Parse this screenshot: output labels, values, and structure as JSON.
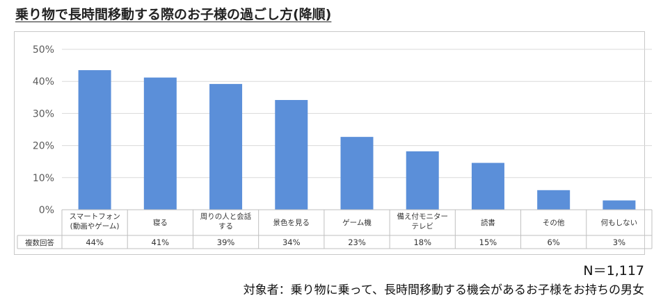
{
  "title": "乗り物で長時間移動する際のお子様の過ごし方(降順)",
  "sample_note": "N＝1,117",
  "subject_note": "対象者：乗り物に乗って、長時間移動する機会があるお子様をお持ちの男女",
  "chart_data": {
    "type": "bar",
    "categories": [
      [
        "スマートフォン",
        "(動画やゲーム)"
      ],
      [
        "寝る"
      ],
      [
        "周りの人と会話",
        "する"
      ],
      [
        "景色を見る"
      ],
      [
        "ゲーム機"
      ],
      [
        "備え付モニター",
        "テレビ"
      ],
      [
        "読書"
      ],
      [
        "その他"
      ],
      [
        "何もしない"
      ]
    ],
    "series": [
      {
        "name": "複数回答",
        "values": [
          43.5,
          41.2,
          39.2,
          34.2,
          22.7,
          18.2,
          14.6,
          6.1,
          2.9
        ]
      }
    ],
    "data_labels": [
      "44%",
      "41%",
      "39%",
      "34%",
      "23%",
      "18%",
      "15%",
      "6%",
      "3%"
    ],
    "y_ticks": [
      "0%",
      "10%",
      "20%",
      "30%",
      "40%",
      "50%"
    ],
    "ylim": [
      0,
      50
    ],
    "grid": true,
    "bar_color": "#5b8fd9",
    "legend": "data-table"
  }
}
